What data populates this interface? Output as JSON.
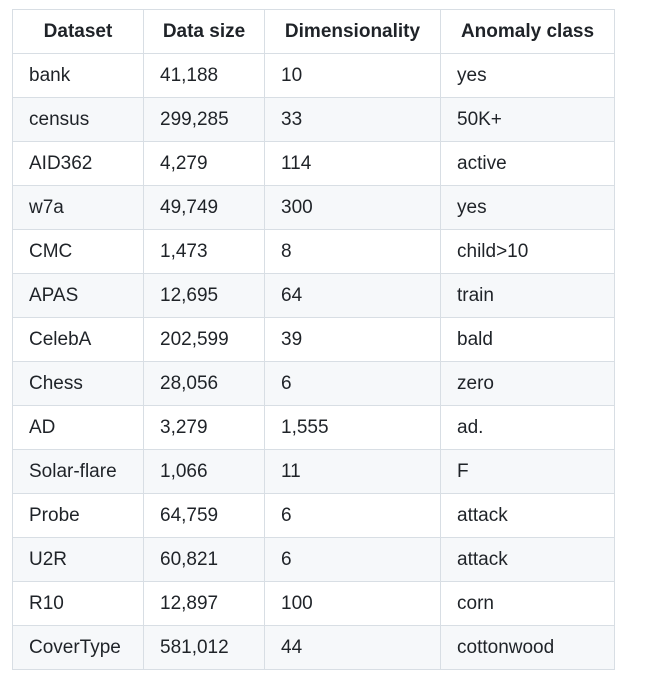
{
  "table": {
    "headers": [
      "Dataset",
      "Data size",
      "Dimensionality",
      "Anomaly class"
    ],
    "rows": [
      [
        "bank",
        "41,188",
        "10",
        "yes"
      ],
      [
        "census",
        "299,285",
        "33",
        "50K+"
      ],
      [
        "AID362",
        "4,279",
        "114",
        "active"
      ],
      [
        "w7a",
        "49,749",
        "300",
        "yes"
      ],
      [
        "CMC",
        "1,473",
        "8",
        "child>10"
      ],
      [
        "APAS",
        "12,695",
        "64",
        "train"
      ],
      [
        "CelebA",
        "202,599",
        "39",
        "bald"
      ],
      [
        "Chess",
        "28,056",
        "6",
        "zero"
      ],
      [
        "AD",
        "3,279",
        "1,555",
        "ad."
      ],
      [
        "Solar-flare",
        "1,066",
        "11",
        "F"
      ],
      [
        "Probe",
        "64,759",
        "6",
        "attack"
      ],
      [
        "U2R",
        "60,821",
        "6",
        "attack"
      ],
      [
        "R10",
        "12,897",
        "100",
        "corn"
      ],
      [
        "CoverType",
        "581,012",
        "44",
        "cottonwood"
      ]
    ]
  }
}
